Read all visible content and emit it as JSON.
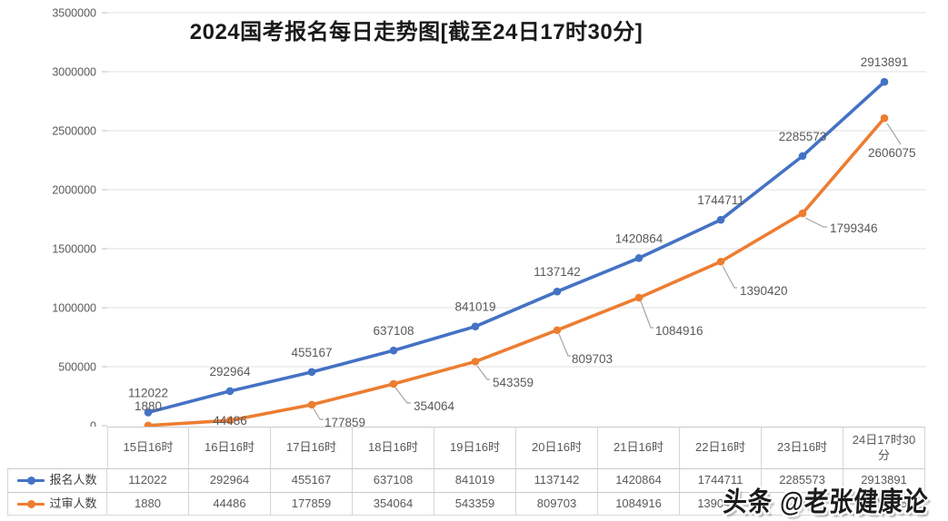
{
  "title": "2024国考报名每日走势图[截至24日17时30分]",
  "watermark": "头条 @老张健康论",
  "colors": {
    "signup_series": "#4472C4",
    "approved_series": "#ED7D31",
    "gridline": "#E2E2E2",
    "axis_text": "#595959",
    "leader_line": "#A6A6A6",
    "title_text": "#1A1A1A",
    "table_border": "#D6D6D6"
  },
  "chart_data": {
    "type": "line",
    "title": "2024国考报名每日走势图[截至24日17时30分]",
    "categories": [
      "15日16时",
      "16日16时",
      "17日16时",
      "18日16时",
      "19日16时",
      "20日16时",
      "21日16时",
      "22日16时",
      "23日16时",
      "24日17时30分"
    ],
    "series": [
      {
        "name": "报名人数",
        "color": "#4472C4",
        "values": [
          112022,
          292964,
          455167,
          637108,
          841019,
          1137142,
          1420864,
          1744711,
          2285573,
          2913891
        ]
      },
      {
        "name": "过审人数",
        "color": "#ED7D31",
        "values": [
          1880,
          44486,
          177859,
          354064,
          543359,
          809703,
          1084916,
          1390420,
          1799346,
          2606075
        ]
      }
    ],
    "ylim": [
      0,
      3500000
    ],
    "ytick_step": 500000,
    "ytick_labels": [
      "0",
      "500000",
      "1000000",
      "1500000",
      "2000000",
      "2500000",
      "3000000",
      "3500000"
    ],
    "grid": true,
    "data_labels": true,
    "markers": "circle",
    "legend_position": "left-of-data-table",
    "data_table_shown": true
  }
}
